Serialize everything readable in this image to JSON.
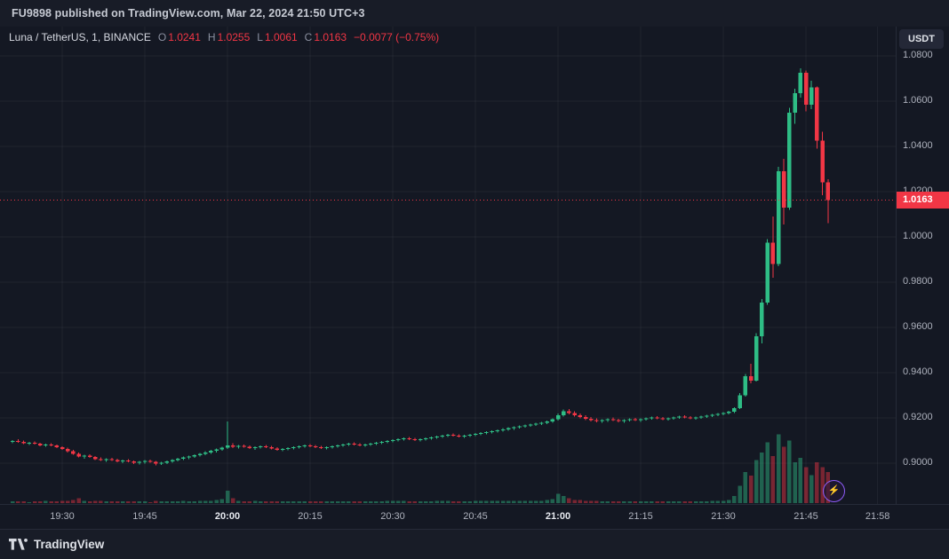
{
  "topbar": {
    "text": "FU9898 published on TradingView.com, Mar 22, 2024 21:50 UTC+3"
  },
  "legend": {
    "symbol": "Luna / TetherUS, 1, BINANCE",
    "ohlc": [
      {
        "label": "O",
        "value": "1.0241"
      },
      {
        "label": "H",
        "value": "1.0255"
      },
      {
        "label": "L",
        "value": "1.0061"
      },
      {
        "label": "C",
        "value": "1.0163"
      }
    ],
    "change": "−0.0077 (−0.75%)"
  },
  "price_axis": {
    "currency_button": "USDT",
    "last_price_label": "1.0163"
  },
  "footer": {
    "brand": "TradingView"
  },
  "icons": {
    "flash_badge": "lightning-bolt",
    "footer_logo": "tradingview-mark"
  },
  "colors": {
    "up": "#2ebd85",
    "down": "#f23645",
    "bg": "#141823",
    "panel": "#181c27",
    "border": "#262b38",
    "grid": "rgba(255,255,255,0.05)",
    "text": "#aeb2bd",
    "text_bright": "#d5d8e0"
  },
  "chart_data": {
    "type": "candlestick",
    "symbol": "Luna / TetherUS",
    "exchange": "BINANCE",
    "interval_minutes": 1,
    "quote_currency": "USDT",
    "grid": true,
    "legend_position": "top-left",
    "last_price": 1.0163,
    "last_bar": {
      "open": 1.0241,
      "high": 1.0255,
      "low": 1.0061,
      "close": 1.0163,
      "change": -0.0077,
      "change_pct": -0.75
    },
    "ylim": [
      0.882,
      1.093
    ],
    "y_ticks": [
      "1.0800",
      "1.0600",
      "1.0400",
      "1.0200",
      "1.0000",
      "0.9800",
      "0.9600",
      "0.9400",
      "0.9200",
      "0.9000"
    ],
    "x_ticks": [
      "19:30",
      "19:45",
      "20:00",
      "20:15",
      "20:30",
      "20:45",
      "21:00",
      "21:15",
      "21:30",
      "21:45",
      "21:58"
    ],
    "columns": [
      "time",
      "open",
      "high",
      "low",
      "close",
      "volume_rel"
    ],
    "candles": [
      [
        "19:21",
        0.9095,
        0.9102,
        0.9088,
        0.9098,
        2
      ],
      [
        "19:22",
        0.9098,
        0.9105,
        0.909,
        0.9094,
        2
      ],
      [
        "19:23",
        0.9094,
        0.91,
        0.9084,
        0.9088,
        2
      ],
      [
        "19:24",
        0.9088,
        0.9094,
        0.908,
        0.909,
        1
      ],
      [
        "19:25",
        0.909,
        0.9096,
        0.9082,
        0.9086,
        2
      ],
      [
        "19:26",
        0.9086,
        0.909,
        0.9075,
        0.9079,
        2
      ],
      [
        "19:27",
        0.9079,
        0.9086,
        0.9072,
        0.9082,
        3
      ],
      [
        "19:28",
        0.9082,
        0.9088,
        0.9074,
        0.9078,
        2
      ],
      [
        "19:29",
        0.9078,
        0.9082,
        0.9066,
        0.907,
        2
      ],
      [
        "19:30",
        0.907,
        0.9075,
        0.9058,
        0.9062,
        3
      ],
      [
        "19:31",
        0.9062,
        0.9068,
        0.9048,
        0.9052,
        3
      ],
      [
        "19:32",
        0.9052,
        0.9058,
        0.9038,
        0.9042,
        4
      ],
      [
        "19:33",
        0.9042,
        0.9048,
        0.9026,
        0.903,
        6
      ],
      [
        "19:34",
        0.903,
        0.9038,
        0.902,
        0.9034,
        3
      ],
      [
        "19:35",
        0.9034,
        0.904,
        0.9024,
        0.9028,
        2
      ],
      [
        "19:36",
        0.9028,
        0.9032,
        0.9014,
        0.9018,
        3
      ],
      [
        "19:37",
        0.9018,
        0.9026,
        0.901,
        0.9014,
        3
      ],
      [
        "19:38",
        0.9014,
        0.9022,
        0.9006,
        0.9018,
        2
      ],
      [
        "19:39",
        0.9018,
        0.9024,
        0.901,
        0.9014,
        2
      ],
      [
        "19:40",
        0.9014,
        0.902,
        0.9004,
        0.9008,
        2
      ],
      [
        "19:41",
        0.9008,
        0.9016,
        0.9,
        0.9012,
        2
      ],
      [
        "19:42",
        0.9012,
        0.9018,
        0.9004,
        0.9008,
        2
      ],
      [
        "19:43",
        0.9008,
        0.9012,
        0.8996,
        0.9002,
        2
      ],
      [
        "19:44",
        0.9002,
        0.901,
        0.8994,
        0.9006,
        2
      ],
      [
        "19:45",
        0.9006,
        0.9014,
        0.8998,
        0.901,
        2
      ],
      [
        "19:46",
        0.901,
        0.9016,
        0.9002,
        0.9006,
        1
      ],
      [
        "19:47",
        0.9006,
        0.901,
        0.899,
        0.8998,
        3
      ],
      [
        "19:48",
        0.8998,
        0.9006,
        0.8992,
        0.9002,
        2
      ],
      [
        "19:49",
        0.9002,
        0.9012,
        0.8996,
        0.9008,
        2
      ],
      [
        "19:50",
        0.9008,
        0.9018,
        0.9002,
        0.9014,
        2
      ],
      [
        "19:51",
        0.9014,
        0.9024,
        0.9008,
        0.902,
        2
      ],
      [
        "19:52",
        0.902,
        0.903,
        0.9014,
        0.9026,
        3
      ],
      [
        "19:53",
        0.9026,
        0.9034,
        0.9018,
        0.903,
        2
      ],
      [
        "19:54",
        0.903,
        0.904,
        0.9024,
        0.9036,
        2
      ],
      [
        "19:55",
        0.9036,
        0.9046,
        0.903,
        0.9042,
        3
      ],
      [
        "19:56",
        0.9042,
        0.9052,
        0.9036,
        0.9048,
        3
      ],
      [
        "19:57",
        0.9048,
        0.9058,
        0.9042,
        0.9054,
        3
      ],
      [
        "19:58",
        0.9054,
        0.9064,
        0.9048,
        0.906,
        4
      ],
      [
        "19:59",
        0.906,
        0.9072,
        0.9054,
        0.9068,
        5
      ],
      [
        "20:00",
        0.9068,
        0.9185,
        0.9062,
        0.9078,
        16
      ],
      [
        "20:01",
        0.9078,
        0.9088,
        0.9066,
        0.9072,
        6
      ],
      [
        "20:02",
        0.9072,
        0.908,
        0.9064,
        0.9076,
        3
      ],
      [
        "20:03",
        0.9076,
        0.9082,
        0.9068,
        0.9072,
        2
      ],
      [
        "20:04",
        0.9072,
        0.9078,
        0.9062,
        0.9066,
        2
      ],
      [
        "20:05",
        0.9066,
        0.9074,
        0.9058,
        0.907,
        3
      ],
      [
        "20:06",
        0.907,
        0.9078,
        0.9064,
        0.9074,
        2
      ],
      [
        "20:07",
        0.9074,
        0.908,
        0.9066,
        0.907,
        2
      ],
      [
        "20:08",
        0.907,
        0.9076,
        0.906,
        0.9064,
        2
      ],
      [
        "20:09",
        0.9064,
        0.907,
        0.9054,
        0.9058,
        2
      ],
      [
        "20:10",
        0.9058,
        0.9066,
        0.9052,
        0.9062,
        2
      ],
      [
        "20:11",
        0.9062,
        0.907,
        0.9056,
        0.9066,
        2
      ],
      [
        "20:12",
        0.9066,
        0.9074,
        0.906,
        0.907,
        2
      ],
      [
        "20:13",
        0.907,
        0.9078,
        0.9064,
        0.9074,
        2
      ],
      [
        "20:14",
        0.9074,
        0.9082,
        0.9068,
        0.9078,
        2
      ],
      [
        "20:15",
        0.9078,
        0.9084,
        0.907,
        0.9074,
        2
      ],
      [
        "20:16",
        0.9074,
        0.908,
        0.9066,
        0.907,
        2
      ],
      [
        "20:17",
        0.907,
        0.9076,
        0.9062,
        0.9066,
        2
      ],
      [
        "20:18",
        0.9066,
        0.9074,
        0.906,
        0.907,
        2
      ],
      [
        "20:19",
        0.907,
        0.9078,
        0.9064,
        0.9074,
        2
      ],
      [
        "20:20",
        0.9074,
        0.9082,
        0.9068,
        0.9078,
        2
      ],
      [
        "20:21",
        0.9078,
        0.9086,
        0.9072,
        0.9082,
        2
      ],
      [
        "20:22",
        0.9082,
        0.909,
        0.9076,
        0.9086,
        2
      ],
      [
        "20:23",
        0.9086,
        0.9092,
        0.9078,
        0.9082,
        2
      ],
      [
        "20:24",
        0.9082,
        0.9088,
        0.9074,
        0.9078,
        2
      ],
      [
        "20:25",
        0.9078,
        0.9086,
        0.9072,
        0.9082,
        2
      ],
      [
        "20:26",
        0.9082,
        0.909,
        0.9076,
        0.9086,
        2
      ],
      [
        "20:27",
        0.9086,
        0.9094,
        0.908,
        0.909,
        2
      ],
      [
        "20:28",
        0.909,
        0.9098,
        0.9084,
        0.9094,
        2
      ],
      [
        "20:29",
        0.9094,
        0.9102,
        0.9088,
        0.9098,
        3
      ],
      [
        "20:30",
        0.9098,
        0.9106,
        0.9092,
        0.9102,
        3
      ],
      [
        "20:31",
        0.9102,
        0.911,
        0.9096,
        0.9106,
        3
      ],
      [
        "20:32",
        0.9106,
        0.9114,
        0.91,
        0.911,
        3
      ],
      [
        "20:33",
        0.911,
        0.9116,
        0.9102,
        0.9106,
        2
      ],
      [
        "20:34",
        0.9106,
        0.9112,
        0.9098,
        0.9102,
        2
      ],
      [
        "20:35",
        0.9102,
        0.911,
        0.9096,
        0.9106,
        2
      ],
      [
        "20:36",
        0.9106,
        0.9114,
        0.91,
        0.911,
        2
      ],
      [
        "20:37",
        0.911,
        0.9118,
        0.9104,
        0.9114,
        2
      ],
      [
        "20:38",
        0.9114,
        0.9122,
        0.9108,
        0.9118,
        3
      ],
      [
        "20:39",
        0.9118,
        0.9126,
        0.9112,
        0.9122,
        3
      ],
      [
        "20:40",
        0.9122,
        0.913,
        0.9116,
        0.9126,
        3
      ],
      [
        "20:41",
        0.9126,
        0.9132,
        0.9118,
        0.9122,
        2
      ],
      [
        "20:42",
        0.9122,
        0.9128,
        0.9114,
        0.9118,
        2
      ],
      [
        "20:43",
        0.9118,
        0.9126,
        0.9112,
        0.9122,
        2
      ],
      [
        "20:44",
        0.9122,
        0.913,
        0.9116,
        0.9126,
        2
      ],
      [
        "20:45",
        0.9126,
        0.9134,
        0.912,
        0.913,
        3
      ],
      [
        "20:46",
        0.913,
        0.9138,
        0.9124,
        0.9134,
        3
      ],
      [
        "20:47",
        0.9134,
        0.9142,
        0.9128,
        0.9138,
        3
      ],
      [
        "20:48",
        0.9138,
        0.9146,
        0.9132,
        0.9142,
        3
      ],
      [
        "20:49",
        0.9142,
        0.915,
        0.9136,
        0.9146,
        3
      ],
      [
        "20:50",
        0.9146,
        0.9154,
        0.914,
        0.915,
        3
      ],
      [
        "20:51",
        0.915,
        0.9158,
        0.9144,
        0.9154,
        3
      ],
      [
        "20:52",
        0.9154,
        0.9162,
        0.9148,
        0.9158,
        3
      ],
      [
        "20:53",
        0.9158,
        0.9166,
        0.9152,
        0.9162,
        3
      ],
      [
        "20:54",
        0.9162,
        0.917,
        0.9156,
        0.9166,
        3
      ],
      [
        "20:55",
        0.9166,
        0.9174,
        0.916,
        0.917,
        3
      ],
      [
        "20:56",
        0.917,
        0.9178,
        0.9164,
        0.9174,
        3
      ],
      [
        "20:57",
        0.9174,
        0.9182,
        0.9168,
        0.9178,
        3
      ],
      [
        "20:58",
        0.9178,
        0.9188,
        0.9172,
        0.9184,
        4
      ],
      [
        "20:59",
        0.9184,
        0.9198,
        0.9178,
        0.9194,
        5
      ],
      [
        "21:00",
        0.9194,
        0.922,
        0.9188,
        0.9212,
        12
      ],
      [
        "21:01",
        0.9212,
        0.9238,
        0.9206,
        0.923,
        9
      ],
      [
        "21:02",
        0.923,
        0.924,
        0.9216,
        0.9222,
        6
      ],
      [
        "21:03",
        0.9222,
        0.923,
        0.9206,
        0.9212,
        4
      ],
      [
        "21:04",
        0.9212,
        0.922,
        0.9198,
        0.9204,
        4
      ],
      [
        "21:05",
        0.9204,
        0.9212,
        0.919,
        0.9196,
        3
      ],
      [
        "21:06",
        0.9196,
        0.9204,
        0.9184,
        0.919,
        3
      ],
      [
        "21:07",
        0.919,
        0.9198,
        0.918,
        0.9186,
        3
      ],
      [
        "21:08",
        0.9186,
        0.9194,
        0.9178,
        0.919,
        2
      ],
      [
        "21:09",
        0.919,
        0.9198,
        0.9182,
        0.9194,
        2
      ],
      [
        "21:10",
        0.9194,
        0.9202,
        0.9186,
        0.919,
        2
      ],
      [
        "21:11",
        0.919,
        0.9196,
        0.918,
        0.9186,
        2
      ],
      [
        "21:12",
        0.9186,
        0.9194,
        0.9178,
        0.919,
        2
      ],
      [
        "21:13",
        0.919,
        0.9198,
        0.9184,
        0.9194,
        2
      ],
      [
        "21:14",
        0.9194,
        0.92,
        0.9186,
        0.919,
        2
      ],
      [
        "21:15",
        0.919,
        0.9198,
        0.9182,
        0.9194,
        2
      ],
      [
        "21:16",
        0.9194,
        0.9202,
        0.9188,
        0.9198,
        2
      ],
      [
        "21:17",
        0.9198,
        0.9206,
        0.9192,
        0.9202,
        2
      ],
      [
        "21:18",
        0.9202,
        0.9208,
        0.9194,
        0.9198,
        2
      ],
      [
        "21:19",
        0.9198,
        0.9204,
        0.919,
        0.9194,
        2
      ],
      [
        "21:20",
        0.9194,
        0.9202,
        0.9188,
        0.9198,
        2
      ],
      [
        "21:21",
        0.9198,
        0.9206,
        0.9192,
        0.9202,
        2
      ],
      [
        "21:22",
        0.9202,
        0.921,
        0.9196,
        0.9206,
        2
      ],
      [
        "21:23",
        0.9206,
        0.9212,
        0.9198,
        0.9202,
        2
      ],
      [
        "21:24",
        0.9202,
        0.9208,
        0.9194,
        0.9198,
        2
      ],
      [
        "21:25",
        0.9198,
        0.9206,
        0.9192,
        0.9202,
        2
      ],
      [
        "21:26",
        0.9202,
        0.921,
        0.9196,
        0.9206,
        2
      ],
      [
        "21:27",
        0.9206,
        0.9214,
        0.92,
        0.921,
        2
      ],
      [
        "21:28",
        0.921,
        0.9218,
        0.9204,
        0.9214,
        3
      ],
      [
        "21:29",
        0.9214,
        0.9222,
        0.9208,
        0.9218,
        3
      ],
      [
        "21:30",
        0.9218,
        0.9226,
        0.9212,
        0.9222,
        3
      ],
      [
        "21:31",
        0.9222,
        0.9232,
        0.9216,
        0.9228,
        4
      ],
      [
        "21:32",
        0.9228,
        0.9248,
        0.9222,
        0.9244,
        9
      ],
      [
        "21:33",
        0.9244,
        0.931,
        0.924,
        0.93,
        22
      ],
      [
        "21:34",
        0.93,
        0.9395,
        0.9294,
        0.9385,
        40
      ],
      [
        "21:35",
        0.9385,
        0.944,
        0.9352,
        0.9365,
        35
      ],
      [
        "21:36",
        0.9365,
        0.9575,
        0.936,
        0.956,
        55
      ],
      [
        "21:37",
        0.956,
        0.9725,
        0.953,
        0.971,
        65
      ],
      [
        "21:38",
        0.971,
        0.999,
        0.97,
        0.9975,
        78
      ],
      [
        "21:39",
        0.9975,
        1.009,
        0.982,
        0.988,
        60
      ],
      [
        "21:40",
        0.988,
        1.031,
        0.987,
        1.029,
        88
      ],
      [
        "21:41",
        1.029,
        1.0345,
        1.0055,
        1.013,
        72
      ],
      [
        "21:42",
        1.013,
        1.057,
        1.012,
        1.055,
        80
      ],
      [
        "21:43",
        1.055,
        1.0655,
        1.05,
        1.0635,
        52
      ],
      [
        "21:44",
        1.0635,
        1.0745,
        1.0615,
        1.0725,
        58
      ],
      [
        "21:45",
        1.0725,
        1.0735,
        1.0555,
        1.0585,
        46
      ],
      [
        "21:46",
        1.0585,
        1.069,
        1.0565,
        1.066,
        36
      ],
      [
        "21:47",
        1.066,
        1.0665,
        1.039,
        1.0425,
        52
      ],
      [
        "21:48",
        1.0425,
        1.0465,
        1.0185,
        1.0241,
        46
      ],
      [
        "21:49",
        1.0241,
        1.0255,
        1.0061,
        1.0163,
        40
      ]
    ]
  }
}
